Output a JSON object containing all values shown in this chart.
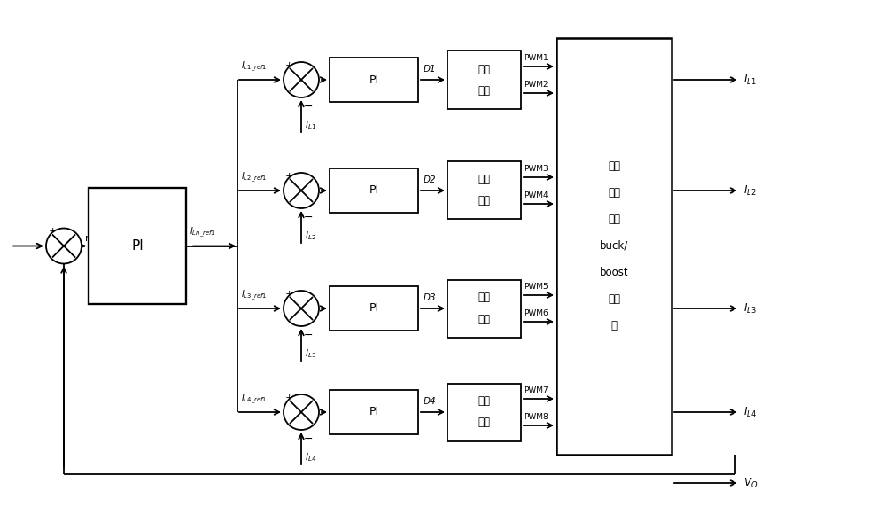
{
  "bg_color": "#ffffff",
  "line_color": "#000000",
  "pwm_pairs": [
    [
      "PWM1",
      "PWM2"
    ],
    [
      "PWM3",
      "PWM4"
    ],
    [
      "PWM5",
      "PWM6"
    ],
    [
      "PWM7",
      "PWM8"
    ]
  ],
  "big_box_label": [
    "四相",
    "交错",
    "并联",
    "buck/",
    "boost",
    "变换",
    "器"
  ],
  "drive_line1": "驱动",
  "drive_line2": "模块",
  "fig_width": 10.0,
  "fig_height": 5.98
}
